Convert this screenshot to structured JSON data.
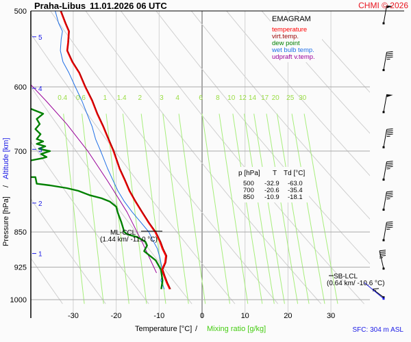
{
  "header": {
    "station": "Praha-Libus",
    "datetime": "11.01.2026 06 UTC",
    "copyright": "CHMI © 2026"
  },
  "legend": {
    "title": "EMAGRAM",
    "items": [
      {
        "label": "temperature",
        "color": "#ff0000"
      },
      {
        "label": "virt.temp.",
        "color": "#990000"
      },
      {
        "label": "dew point",
        "color": "#008000"
      },
      {
        "label": "wet bulb temp.",
        "color": "#1e6ee6"
      },
      {
        "label": "udpraft v.temp.",
        "color": "#990099"
      }
    ]
  },
  "table": {
    "headers": [
      "p [hPa]",
      "T",
      "Td [°C]"
    ],
    "rows": [
      [
        "500",
        "-32.9",
        "-63.0"
      ],
      [
        "700",
        "-20.6",
        "-35.4"
      ],
      [
        "850",
        "-10.9",
        "-18.1"
      ]
    ]
  },
  "annotations": {
    "ml_ccl_label": "ML-CCL",
    "ml_ccl_values": "(1.44 km/ -11.0 °C)",
    "sb_lcl_label": "SB-LCL",
    "sb_lcl_values": "(0.64 km/ -10.6 °C)",
    "sfc": "SFC: 304 m ASL"
  },
  "axes": {
    "ylabel_pressure": "Pressure [hPa]",
    "ylabel_sep": "/",
    "ylabel_altitude": "Altitude [km]",
    "xlabel_temp": "Temperature [°C]",
    "xlabel_sep": "/",
    "xlabel_mix": "Mixing ratio [g/kg]"
  },
  "chart_data": {
    "type": "line",
    "title": "EMAGRAM",
    "xlabel": "Temperature [°C] / Mixing ratio [g/kg]",
    "ylabel": "Pressure [hPa] / Altitude [km]",
    "xlim": [
      -40,
      39
    ],
    "ylim": [
      1000,
      500
    ],
    "x_ticks": [
      -30,
      -20,
      -10,
      0,
      10,
      20,
      30
    ],
    "x_tick_labels": [
      "-30",
      "-20",
      "-10",
      "0",
      "10",
      "20",
      "30"
    ],
    "p_ticks": [
      500,
      600,
      700,
      850,
      925,
      1000
    ],
    "p_tick_labels": [
      "500",
      "600",
      "700",
      "850",
      "925",
      "1000"
    ],
    "altitude_ticks": [
      {
        "km": "1",
        "p": 895
      },
      {
        "km": "2",
        "p": 793
      },
      {
        "km": "3",
        "p": 697
      },
      {
        "km": "4",
        "p": 602
      },
      {
        "km": "5",
        "p": 532
      }
    ],
    "mixing_ratio_labels": [
      "0.4",
      "0.6",
      "1",
      "1.4",
      "2",
      "3",
      "4",
      "6",
      "8",
      "10",
      "12",
      "14",
      "17",
      "20",
      "25",
      "30"
    ],
    "mixing_ratio_values": [
      0.4,
      0.6,
      1,
      1.4,
      2,
      3,
      4,
      6,
      8,
      10,
      12,
      14,
      17,
      20,
      25,
      30
    ],
    "series": [
      {
        "name": "temperature",
        "color": "#ff0000",
        "points": [
          [
            -7.5,
            975
          ],
          [
            -8.2,
            960
          ],
          [
            -8.8,
            945
          ],
          [
            -9.3,
            930
          ],
          [
            -8.6,
            915
          ],
          [
            -8.4,
            900
          ],
          [
            -9.2,
            885
          ],
          [
            -9.8,
            870
          ],
          [
            -10.9,
            850
          ],
          [
            -12.5,
            830
          ],
          [
            -14.0,
            810
          ],
          [
            -15.5,
            790
          ],
          [
            -16.9,
            770
          ],
          [
            -18.0,
            750
          ],
          [
            -19.2,
            730
          ],
          [
            -20.6,
            700
          ],
          [
            -21.8,
            680
          ],
          [
            -23.0,
            660
          ],
          [
            -24.4,
            640
          ],
          [
            -25.6,
            620
          ],
          [
            -27.2,
            600
          ],
          [
            -28.6,
            580
          ],
          [
            -30.2,
            565
          ],
          [
            -31.4,
            550
          ],
          [
            -31.2,
            540
          ],
          [
            -31.0,
            525
          ],
          [
            -31.8,
            515
          ],
          [
            -32.9,
            500
          ]
        ]
      },
      {
        "name": "virt.temp.",
        "color": "#990000",
        "points": [
          [
            -7.3,
            975
          ],
          [
            -8.0,
            960
          ],
          [
            -8.6,
            945
          ],
          [
            -9.1,
            930
          ],
          [
            -8.4,
            915
          ],
          [
            -8.2,
            900
          ],
          [
            -9.0,
            885
          ],
          [
            -9.6,
            870
          ],
          [
            -10.7,
            850
          ],
          [
            -12.4,
            830
          ],
          [
            -13.9,
            810
          ],
          [
            -15.4,
            790
          ],
          [
            -16.8,
            770
          ],
          [
            -17.9,
            750
          ],
          [
            -19.1,
            730
          ],
          [
            -20.5,
            700
          ],
          [
            -21.7,
            680
          ],
          [
            -22.9,
            660
          ],
          [
            -24.3,
            640
          ],
          [
            -25.5,
            620
          ],
          [
            -27.1,
            600
          ],
          [
            -28.5,
            580
          ],
          [
            -30.1,
            565
          ],
          [
            -31.3,
            550
          ],
          [
            -31.1,
            540
          ],
          [
            -30.9,
            525
          ],
          [
            -31.7,
            515
          ],
          [
            -32.8,
            500
          ]
        ]
      },
      {
        "name": "wet bulb temp.",
        "color": "#1e6ee6",
        "points": [
          [
            -8.8,
            975
          ],
          [
            -9.6,
            955
          ],
          [
            -9.2,
            940
          ],
          [
            -9.4,
            925
          ],
          [
            -9.8,
            905
          ],
          [
            -10.4,
            885
          ],
          [
            -11.6,
            865
          ],
          [
            -12.4,
            850
          ],
          [
            -14.3,
            830
          ],
          [
            -16.3,
            810
          ],
          [
            -18.1,
            790
          ],
          [
            -19.6,
            770
          ],
          [
            -20.8,
            750
          ],
          [
            -22.0,
            730
          ],
          [
            -23.6,
            700
          ],
          [
            -24.8,
            680
          ],
          [
            -25.6,
            660
          ],
          [
            -26.8,
            640
          ],
          [
            -28.0,
            620
          ],
          [
            -29.5,
            600
          ],
          [
            -31.0,
            580
          ],
          [
            -32.4,
            565
          ],
          [
            -33.0,
            550
          ],
          [
            -32.8,
            535
          ],
          [
            -32.5,
            525
          ],
          [
            -33.4,
            515
          ],
          [
            -34.2,
            500
          ]
        ]
      },
      {
        "name": "dew point",
        "color": "#008000",
        "points": [
          [
            -9.5,
            975
          ],
          [
            -9.2,
            955
          ],
          [
            -9.6,
            930
          ],
          [
            -10.8,
            910
          ],
          [
            -13.5,
            890
          ],
          [
            -12.8,
            878
          ],
          [
            -13.2,
            870
          ],
          [
            -15.2,
            860
          ],
          [
            -17.4,
            855
          ],
          [
            -18.1,
            850
          ],
          [
            -18.8,
            830
          ],
          [
            -19.6,
            812
          ],
          [
            -20.0,
            800
          ],
          [
            -21.5,
            790
          ],
          [
            -23.4,
            784
          ],
          [
            -26.2,
            778
          ],
          [
            -28.8,
            770
          ],
          [
            -31.5,
            765
          ],
          [
            -35.4,
            760
          ],
          [
            -38.5,
            757
          ],
          [
            -38.8,
            745
          ],
          [
            -40,
            745
          ]
        ]
      },
      {
        "name": "dew point upper",
        "color": "#008000",
        "points": [
          [
            -40,
            716
          ],
          [
            -37.2,
            712
          ],
          [
            -36.2,
            710
          ],
          [
            -37.5,
            705
          ],
          [
            -35.4,
            700
          ],
          [
            -38,
            696
          ],
          [
            -36.5,
            692
          ],
          [
            -38.5,
            688
          ],
          [
            -37,
            684
          ],
          [
            -38.5,
            680
          ],
          [
            -37.6,
            672
          ],
          [
            -38.8,
            664
          ],
          [
            -37.8,
            656
          ],
          [
            -38.5,
            648
          ],
          [
            -37,
            640
          ],
          [
            -38.5,
            636
          ],
          [
            -40,
            632
          ]
        ]
      },
      {
        "name": "udpraft v.temp.",
        "color": "#990099",
        "points": [
          [
            -10.6,
            938
          ],
          [
            -14.0,
            870
          ],
          [
            -17.5,
            810
          ],
          [
            -22.0,
            752
          ],
          [
            -26.6,
            700
          ],
          [
            -31.5,
            656
          ],
          [
            -36.4,
            620
          ],
          [
            -40,
            596
          ]
        ]
      }
    ],
    "levels_table": [
      {
        "p": 500,
        "T": -32.9,
        "Td": -63.0
      },
      {
        "p": 700,
        "T": -20.6,
        "Td": -35.4
      },
      {
        "p": 850,
        "T": -10.9,
        "Td": -18.1
      }
    ],
    "wind_barbs": [
      {
        "p": 505,
        "direction_deg": 280,
        "speed_kt": 50
      },
      {
        "p": 565,
        "direction_deg": 285,
        "speed_kt": 45
      },
      {
        "p": 625,
        "direction_deg": 270,
        "speed_kt": 50
      },
      {
        "p": 680,
        "direction_deg": 280,
        "speed_kt": 45
      },
      {
        "p": 735,
        "direction_deg": 285,
        "speed_kt": 45
      },
      {
        "p": 790,
        "direction_deg": 290,
        "speed_kt": 45
      },
      {
        "p": 850,
        "direction_deg": 290,
        "speed_kt": 45
      },
      {
        "p": 910,
        "direction_deg": 300,
        "speed_kt": 45
      },
      {
        "p": 975,
        "direction_deg": 340,
        "speed_kt": 15
      }
    ],
    "grid": true
  }
}
